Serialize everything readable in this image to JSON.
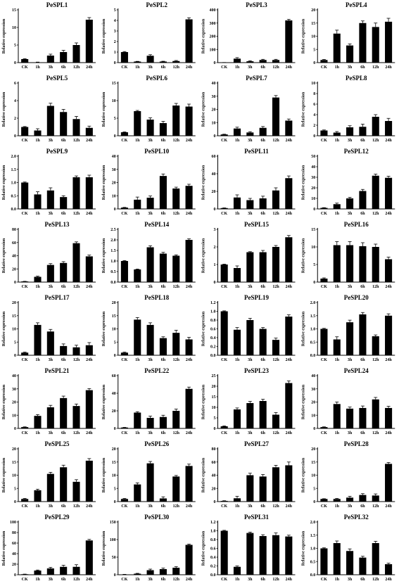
{
  "chart_data": [
    {
      "type": "bar",
      "title": "PeSPL1",
      "ylabel": "Relative expression",
      "categories": [
        "CK",
        "1h",
        "3h",
        "6h",
        "12h",
        "24h"
      ],
      "values": [
        1,
        0.1,
        2,
        3,
        5,
        12.2
      ],
      "errors": [
        0.1,
        0.05,
        0.4,
        0.5,
        0.6,
        0.6
      ],
      "ylim": [
        0,
        15
      ],
      "yticks": [
        0,
        5,
        10,
        15
      ]
    },
    {
      "type": "bar",
      "title": "PeSPL2",
      "ylabel": "Relative expression",
      "categories": [
        "CK",
        "1h",
        "3h",
        "6h",
        "12h",
        "24h"
      ],
      "values": [
        1,
        0.1,
        0.65,
        0.1,
        0.15,
        4.1
      ],
      "errors": [
        0.05,
        0.02,
        0.1,
        0.03,
        0.05,
        0.15
      ],
      "ylim": [
        0,
        5
      ],
      "yticks": [
        0,
        1,
        2,
        3,
        4,
        5
      ]
    },
    {
      "type": "bar",
      "title": "PeSPL3",
      "ylabel": "Relative expression",
      "categories": [
        "CK",
        "1h",
        "3h",
        "6h",
        "12h",
        "24h"
      ],
      "values": [
        1,
        30,
        10,
        20,
        20,
        320
      ],
      "errors": [
        0.2,
        8,
        4,
        5,
        5,
        8
      ],
      "ylim": [
        0,
        400
      ],
      "yticks": [
        0,
        100,
        200,
        300,
        400
      ]
    },
    {
      "type": "bar",
      "title": "PeSPL4",
      "ylabel": "Relative expression",
      "categories": [
        "CK",
        "1h",
        "3h",
        "6h",
        "12h",
        "24h"
      ],
      "values": [
        1,
        11,
        6.5,
        15,
        13.5,
        15.5
      ],
      "errors": [
        0.2,
        1.3,
        0.6,
        0.8,
        1.5,
        1.3
      ],
      "ylim": [
        0,
        20
      ],
      "yticks": [
        0,
        5,
        10,
        15,
        20
      ]
    },
    {
      "type": "bar",
      "title": "PeSPL5",
      "ylabel": "Relative expression",
      "categories": [
        "CK",
        "1h",
        "3h",
        "6h",
        "12h",
        "24h"
      ],
      "values": [
        1,
        0.6,
        3.4,
        2.7,
        1.9,
        0.9
      ],
      "errors": [
        0.05,
        0.2,
        0.3,
        0.3,
        0.3,
        0.2
      ],
      "ylim": [
        0,
        6
      ],
      "yticks": [
        0,
        2,
        4,
        6
      ]
    },
    {
      "type": "bar",
      "title": "PeSPL6",
      "ylabel": "Relative expression",
      "categories": [
        "CK",
        "1h",
        "3h",
        "6h",
        "12h",
        "24h"
      ],
      "values": [
        1,
        7,
        4.6,
        3.6,
        8.6,
        8.3
      ],
      "errors": [
        0.1,
        0.2,
        0.5,
        0.5,
        0.6,
        0.7
      ],
      "ylim": [
        0,
        15
      ],
      "yticks": [
        0,
        5,
        10,
        15
      ]
    },
    {
      "type": "bar",
      "title": "PeSPL7",
      "ylabel": "Relative expression",
      "categories": [
        "CK",
        "1h",
        "3h",
        "6h",
        "12h",
        "24h"
      ],
      "values": [
        1,
        5.5,
        2.5,
        6,
        29,
        11.5
      ],
      "errors": [
        0.2,
        1,
        0.6,
        1,
        1.5,
        1.2
      ],
      "ylim": [
        0,
        40
      ],
      "yticks": [
        0,
        10,
        20,
        30,
        40
      ]
    },
    {
      "type": "bar",
      "title": "PeSPL8",
      "ylabel": "Relative expression",
      "categories": [
        "CK",
        "1h",
        "3h",
        "6h",
        "12h",
        "24h"
      ],
      "values": [
        1,
        0.6,
        1.6,
        1.7,
        3.6,
        2.8
      ],
      "errors": [
        0.1,
        0.2,
        0.3,
        0.5,
        0.4,
        0.5
      ],
      "ylim": [
        0,
        10
      ],
      "yticks": [
        0,
        2,
        4,
        6,
        8,
        10
      ]
    },
    {
      "type": "bar",
      "title": "PeSPL9",
      "ylabel": "Relative expression",
      "categories": [
        "CK",
        "1h",
        "3h",
        "6h",
        "12h",
        "24h"
      ],
      "values": [
        1,
        0.55,
        0.7,
        0.45,
        1.2,
        1.2
      ],
      "errors": [
        0.02,
        0.1,
        0.1,
        0.05,
        0.05,
        0.08
      ],
      "ylim": [
        0,
        2
      ],
      "yticks": [
        0,
        0.5,
        1.0,
        1.5,
        2.0
      ]
    },
    {
      "type": "bar",
      "title": "PeSPL10",
      "ylabel": "Relative expression",
      "categories": [
        "CK",
        "1h",
        "3h",
        "6h",
        "12h",
        "24h"
      ],
      "values": [
        1,
        7,
        8.5,
        25,
        15.5,
        17.5
      ],
      "errors": [
        0.2,
        2,
        1.3,
        1.5,
        1,
        1.2
      ],
      "ylim": [
        0,
        40
      ],
      "yticks": [
        0,
        10,
        20,
        30,
        40
      ]
    },
    {
      "type": "bar",
      "title": "PeSPL11",
      "ylabel": "Relative expression",
      "categories": [
        "CK",
        "1h",
        "3h",
        "6h",
        "12h",
        "24h"
      ],
      "values": [
        1,
        13,
        10,
        12,
        21,
        35
      ],
      "errors": [
        0.2,
        3,
        2,
        2.5,
        3,
        2.5
      ],
      "ylim": [
        0,
        60
      ],
      "yticks": [
        0,
        20,
        40,
        60
      ]
    },
    {
      "type": "bar",
      "title": "PeSPL12",
      "ylabel": "Relative expression",
      "categories": [
        "CK",
        "1h",
        "3h",
        "6h",
        "12h",
        "24h"
      ],
      "values": [
        1,
        4.5,
        10,
        17,
        31.5,
        29.5
      ],
      "errors": [
        0.2,
        1,
        1,
        1.5,
        1.5,
        1.5
      ],
      "ylim": [
        0,
        50
      ],
      "yticks": [
        0,
        10,
        20,
        30,
        40,
        50
      ]
    },
    {
      "type": "bar",
      "title": "PeSPL13",
      "ylabel": "Relative expression",
      "categories": [
        "CK",
        "1h",
        "3h",
        "6h",
        "12h",
        "24h"
      ],
      "values": [
        1,
        8,
        26,
        29,
        59,
        39
      ],
      "errors": [
        0.2,
        1,
        2,
        2,
        2,
        2
      ],
      "ylim": [
        0,
        80
      ],
      "yticks": [
        0,
        20,
        40,
        60,
        80
      ]
    },
    {
      "type": "bar",
      "title": "PeSPL14",
      "ylabel": "Relative expression",
      "categories": [
        "CK",
        "1h",
        "3h",
        "6h",
        "12h",
        "24h"
      ],
      "values": [
        1,
        0.6,
        1.65,
        1.35,
        1.25,
        2.0
      ],
      "errors": [
        0.02,
        0.02,
        0.07,
        0.06,
        0.04,
        0.05
      ],
      "ylim": [
        0,
        2.5
      ],
      "yticks": [
        0,
        0.5,
        1.0,
        1.5,
        2.0,
        2.5
      ]
    },
    {
      "type": "bar",
      "title": "PeSPL15",
      "ylabel": "Relative expression",
      "categories": [
        "CK",
        "1h",
        "3h",
        "6h",
        "12h",
        "24h"
      ],
      "values": [
        1,
        0.8,
        1.7,
        1.7,
        2.0,
        2.55
      ],
      "errors": [
        0.02,
        0.12,
        0.03,
        0.1,
        0.08,
        0.1
      ],
      "ylim": [
        0,
        3
      ],
      "yticks": [
        0,
        1,
        2,
        3
      ]
    },
    {
      "type": "bar",
      "title": "PeSPL16",
      "ylabel": "Relative expression",
      "categories": [
        "CK",
        "1h",
        "3h",
        "6h",
        "12h",
        "24h"
      ],
      "values": [
        1,
        10.5,
        10.5,
        10.2,
        10,
        6.5
      ],
      "errors": [
        0.2,
        1,
        1,
        1,
        0.8,
        0.6
      ],
      "ylim": [
        0,
        15
      ],
      "yticks": [
        0,
        5,
        10,
        15
      ]
    },
    {
      "type": "bar",
      "title": "PeSPL17",
      "ylabel": "Relative expression",
      "categories": [
        "CK",
        "1h",
        "3h",
        "6h",
        "12h",
        "24h"
      ],
      "values": [
        1,
        11.5,
        9,
        3.5,
        3,
        3.8
      ],
      "errors": [
        0.2,
        0.8,
        0.8,
        0.8,
        0.8,
        1
      ],
      "ylim": [
        0,
        20
      ],
      "yticks": [
        0,
        5,
        10,
        15,
        20
      ]
    },
    {
      "type": "bar",
      "title": "PeSPL18",
      "ylabel": "Relative expression",
      "categories": [
        "CK",
        "1h",
        "3h",
        "6h",
        "12h",
        "24h"
      ],
      "values": [
        1,
        13.5,
        11.5,
        6.5,
        8.5,
        6
      ],
      "errors": [
        0.2,
        0.8,
        0.8,
        0.5,
        1,
        0.8
      ],
      "ylim": [
        0,
        20
      ],
      "yticks": [
        0,
        5,
        10,
        15,
        20
      ]
    },
    {
      "type": "bar",
      "title": "PeSPL19",
      "ylabel": "Relative expression",
      "categories": [
        "CK",
        "1h",
        "3h",
        "6h",
        "12h",
        "24h"
      ],
      "values": [
        1,
        0.58,
        0.8,
        0.6,
        0.35,
        0.88
      ],
      "errors": [
        0.01,
        0.05,
        0.04,
        0.03,
        0.04,
        0.04
      ],
      "ylim": [
        0,
        1.2
      ],
      "yticks": [
        0,
        0.2,
        0.4,
        0.6,
        0.8,
        1.0,
        1.2
      ]
    },
    {
      "type": "bar",
      "title": "PeSPL20",
      "ylabel": "Relative expression",
      "categories": [
        "CK",
        "1h",
        "3h",
        "6h",
        "12h",
        "24h"
      ],
      "values": [
        1,
        0.6,
        1.25,
        1.55,
        0.72,
        1.5
      ],
      "errors": [
        0.02,
        0.1,
        0.08,
        0.07,
        0.05,
        0.07
      ],
      "ylim": [
        0,
        2
      ],
      "yticks": [
        0,
        0.5,
        1.0,
        1.5,
        2.0
      ]
    },
    {
      "type": "bar",
      "title": "PeSPL21",
      "ylabel": "Relative expression",
      "categories": [
        "CK",
        "1h",
        "3h",
        "6h",
        "12h",
        "24h"
      ],
      "values": [
        1,
        9.5,
        16,
        23,
        17,
        29
      ],
      "errors": [
        0.2,
        1,
        1.5,
        1.5,
        1.5,
        1.2
      ],
      "ylim": [
        0,
        40
      ],
      "yticks": [
        0,
        10,
        20,
        30,
        40
      ]
    },
    {
      "type": "bar",
      "title": "PeSPL22",
      "ylabel": "Relative expression",
      "categories": [
        "CK",
        "1h",
        "3h",
        "6h",
        "12h",
        "24h"
      ],
      "values": [
        1,
        18,
        12,
        13,
        20,
        45
      ],
      "errors": [
        0.2,
        1,
        2,
        2,
        2,
        2
      ],
      "ylim": [
        0,
        60
      ],
      "yticks": [
        0,
        20,
        40,
        60
      ]
    },
    {
      "type": "bar",
      "title": "PeSPL23",
      "ylabel": "Relative expression",
      "categories": [
        "CK",
        "1h",
        "3h",
        "6h",
        "12h",
        "24h"
      ],
      "values": [
        1,
        9,
        12,
        13,
        6.5,
        21.5
      ],
      "errors": [
        0.2,
        0.7,
        0.8,
        0.8,
        1,
        1
      ],
      "ylim": [
        0,
        25
      ],
      "yticks": [
        0,
        5,
        10,
        15,
        20,
        25
      ]
    },
    {
      "type": "bar",
      "title": "PeSPL24",
      "ylabel": "Relative expression",
      "categories": [
        "CK",
        "1h",
        "3h",
        "6h",
        "12h",
        "24h"
      ],
      "values": [
        1,
        18.5,
        15,
        15.5,
        22,
        15.5
      ],
      "errors": [
        0.2,
        1.5,
        1.2,
        1.5,
        1.5,
        1.3
      ],
      "ylim": [
        0,
        40
      ],
      "yticks": [
        0,
        10,
        20,
        30,
        40
      ]
    },
    {
      "type": "bar",
      "title": "PeSPL25",
      "ylabel": "Relative expression",
      "categories": [
        "CK",
        "1h",
        "3h",
        "6h",
        "12h",
        "24h"
      ],
      "values": [
        1,
        4.3,
        10.5,
        13,
        7.5,
        15.5
      ],
      "errors": [
        0.2,
        0.4,
        0.6,
        0.8,
        0.8,
        0.8
      ],
      "ylim": [
        0,
        20
      ],
      "yticks": [
        0,
        5,
        10,
        15,
        20
      ]
    },
    {
      "type": "bar",
      "title": "PeSPL26",
      "ylabel": "Relative expression",
      "categories": [
        "CK",
        "1h",
        "3h",
        "6h",
        "12h",
        "24h"
      ],
      "values": [
        1,
        6.5,
        14.5,
        1.2,
        9.5,
        13.5
      ],
      "errors": [
        0.2,
        0.6,
        0.7,
        0.6,
        0.4,
        0.7
      ],
      "ylim": [
        0,
        20
      ],
      "yticks": [
        0,
        5,
        10,
        15,
        20
      ]
    },
    {
      "type": "bar",
      "title": "PeSPL27",
      "ylabel": "Relative expression",
      "categories": [
        "CK",
        "1h",
        "3h",
        "6h",
        "12h",
        "24h"
      ],
      "values": [
        1,
        5,
        40,
        38,
        52,
        55
      ],
      "errors": [
        0.3,
        3,
        3,
        3,
        3,
        5
      ],
      "ylim": [
        0,
        80
      ],
      "yticks": [
        0,
        20,
        40,
        60,
        80
      ]
    },
    {
      "type": "bar",
      "title": "PeSPL28",
      "ylabel": "Relative expression",
      "categories": [
        "CK",
        "1h",
        "3h",
        "6h",
        "12h",
        "24h"
      ],
      "values": [
        1,
        1,
        1.5,
        2.5,
        2.3,
        14.3
      ],
      "errors": [
        0.1,
        0.2,
        0.5,
        0.5,
        0.6,
        0.5
      ],
      "ylim": [
        0,
        20
      ],
      "yticks": [
        0,
        5,
        10,
        15,
        20
      ]
    },
    {
      "type": "bar",
      "title": "PeSPL29",
      "ylabel": "Relative expression",
      "categories": [
        "CK",
        "1h",
        "3h",
        "6h",
        "12h",
        "24h"
      ],
      "values": [
        1,
        8,
        12,
        15,
        15,
        65
      ],
      "errors": [
        0.2,
        1,
        2,
        3,
        4,
        2
      ],
      "ylim": [
        0,
        100
      ],
      "yticks": [
        0,
        20,
        40,
        60,
        80,
        100
      ]
    },
    {
      "type": "bar",
      "title": "PeSPL30",
      "ylabel": "Relative expression",
      "categories": [
        "CK",
        "1h",
        "3h",
        "6h",
        "12h",
        "24h"
      ],
      "values": [
        1,
        3,
        13,
        16,
        20,
        85
      ],
      "errors": [
        0.2,
        1,
        3,
        3,
        3,
        2
      ],
      "ylim": [
        0,
        150
      ],
      "yticks": [
        0,
        50,
        100,
        150
      ]
    },
    {
      "type": "bar",
      "title": "PeSPL31",
      "ylabel": "Relative expression",
      "categories": [
        "CK",
        "1h",
        "3h",
        "6h",
        "12h",
        "24h"
      ],
      "values": [
        1,
        0.18,
        0.95,
        0.88,
        0.9,
        0.87
      ],
      "errors": [
        0.01,
        0.02,
        0.02,
        0.03,
        0.05,
        0.03
      ],
      "ylim": [
        0,
        1.2
      ],
      "yticks": [
        0,
        0.2,
        0.4,
        0.6,
        0.8,
        1.0,
        1.2
      ]
    },
    {
      "type": "bar",
      "title": "PeSPL32",
      "ylabel": "Relative expression",
      "categories": [
        "CK",
        "1h",
        "3h",
        "6h",
        "12h",
        "24h"
      ],
      "values": [
        1,
        1.2,
        0.9,
        0.65,
        1.2,
        0.4
      ],
      "errors": [
        0.02,
        0.08,
        0.08,
        0.05,
        0.07,
        0.04
      ],
      "ylim": [
        0,
        2
      ],
      "yticks": [
        0,
        0.5,
        1.0,
        1.5,
        2.0
      ]
    }
  ]
}
